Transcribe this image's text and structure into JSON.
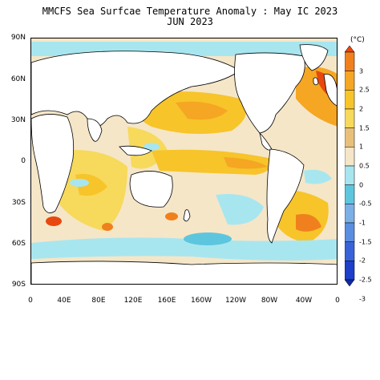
{
  "title_line1": "MMCFS Sea Surfcae Temperature Anomaly : May IC 2023",
  "title_line2": "JUN 2023",
  "colorbar": {
    "unit": "(°C)",
    "levels": [
      "3",
      "2.5",
      "2",
      "1.5",
      "1",
      "0.5",
      "0",
      "-0.5",
      "-1",
      "-1.5",
      "-2",
      "-2.5",
      "-3"
    ],
    "colors": [
      "#e8470f",
      "#f0801d",
      "#f5a623",
      "#f7c42a",
      "#f7d95c",
      "#e8c07a",
      "#f5e6c8",
      "#a8e6ef",
      "#5dc6de",
      "#7ab0e6",
      "#5a8ee0",
      "#3a62d8",
      "#1d3fc9",
      "#0f2aa8"
    ]
  },
  "lat_labels": [
    "90N",
    "60N",
    "30N",
    "0",
    "30S",
    "60S",
    "90S"
  ],
  "lon_labels": [
    "0",
    "40E",
    "80E",
    "120E",
    "160E",
    "160W",
    "120W",
    "80W",
    "40W",
    "0"
  ],
  "chart_data": {
    "type": "heatmap",
    "variable": "Sea Surface Temperature Anomaly",
    "unit": "°C",
    "colorbar_range": [
      -3,
      3
    ]
  }
}
